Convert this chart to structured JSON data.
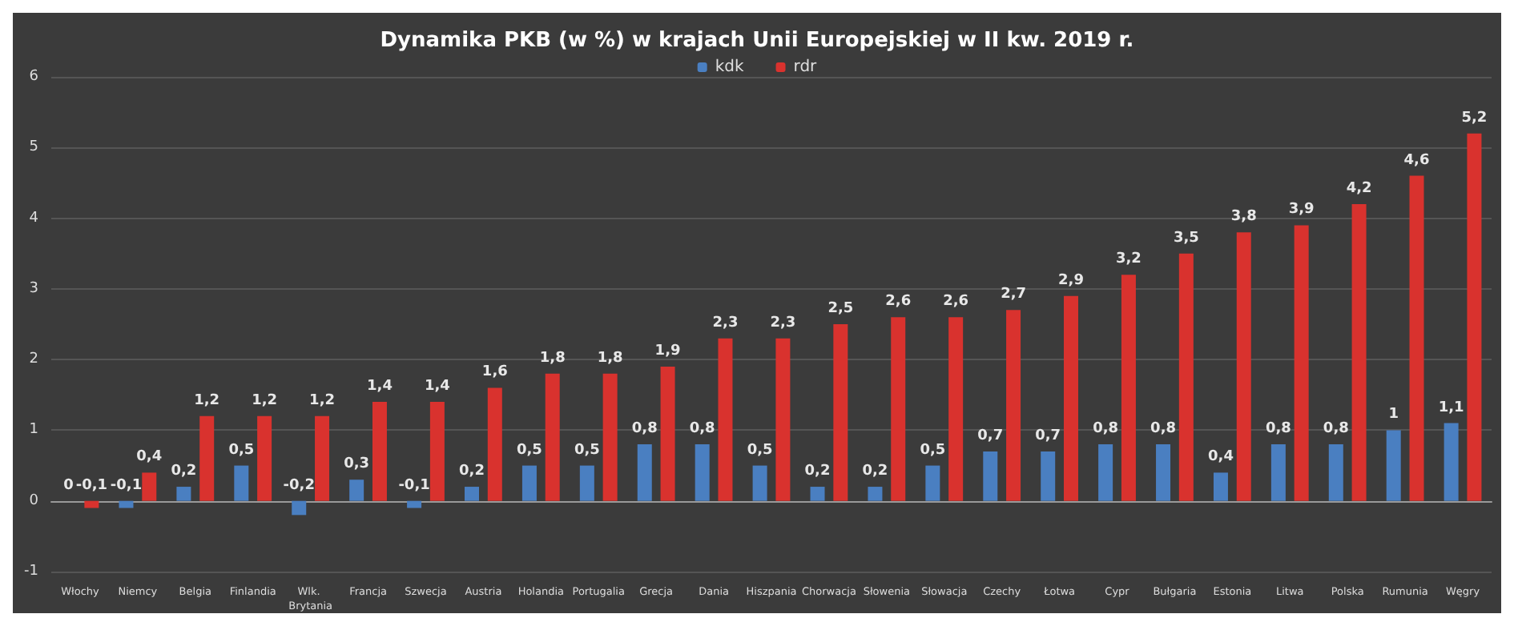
{
  "chart_data": {
    "type": "bar",
    "title": "Dynamika PKB (w %) w krajach Unii Europejskiej w II kw. 2019 r.",
    "categories": [
      "Włochy",
      "Niemcy",
      "Belgia",
      "Finlandia",
      "Wlk. Brytania",
      "Francja",
      "Szwecja",
      "Austria",
      "Holandia",
      "Portugalia",
      "Grecja",
      "Dania",
      "Hiszpania",
      "Chorwacja",
      "Słowenia",
      "Słowacja",
      "Czechy",
      "Łotwa",
      "Cypr",
      "Bułgaria",
      "Estonia",
      "Litwa",
      "Polska",
      "Rumunia",
      "Węgry"
    ],
    "series": [
      {
        "name": "kdk",
        "color": "#4a7fc1",
        "values": [
          0,
          -0.1,
          0.2,
          0.5,
          -0.2,
          0.3,
          -0.1,
          0.2,
          0.5,
          0.5,
          0.8,
          0.8,
          0.5,
          0.2,
          0.2,
          0.5,
          0.7,
          0.7,
          0.8,
          0.8,
          0.4,
          0.8,
          0.8,
          1,
          1.1
        ],
        "value_labels": [
          "0",
          "-0,1",
          "0,2",
          "0,5",
          "-0,2",
          "0,3",
          "-0,1",
          "0,2",
          "0,5",
          "0,5",
          "0,8",
          "0,8",
          "0,5",
          "0,2",
          "0,2",
          "0,5",
          "0,7",
          "0,7",
          "0,8",
          "0,8",
          "0,4",
          "0,8",
          "0,8",
          "1",
          "1,1"
        ]
      },
      {
        "name": "rdr",
        "color": "#d9322e",
        "values": [
          -0.1,
          0.4,
          1.2,
          1.2,
          1.2,
          1.4,
          1.4,
          1.6,
          1.8,
          1.8,
          1.9,
          2.3,
          2.3,
          2.5,
          2.6,
          2.6,
          2.7,
          2.9,
          3.2,
          3.5,
          3.8,
          3.9,
          4.2,
          4.6,
          5.2
        ],
        "value_labels": [
          "-0,1",
          "0,4",
          "1,2",
          "1,2",
          "1,2",
          "1,4",
          "1,4",
          "1,6",
          "1,8",
          "1,8",
          "1,9",
          "2,3",
          "2,3",
          "2,5",
          "2,6",
          "2,6",
          "2,7",
          "2,9",
          "3,2",
          "3,5",
          "3,8",
          "3,9",
          "4,2",
          "4,6",
          "5,2"
        ]
      }
    ],
    "ylim": [
      -1,
      6
    ],
    "yticks": [
      -1,
      0,
      1,
      2,
      3,
      4,
      5,
      6
    ],
    "grid": "y",
    "legend": "top"
  }
}
